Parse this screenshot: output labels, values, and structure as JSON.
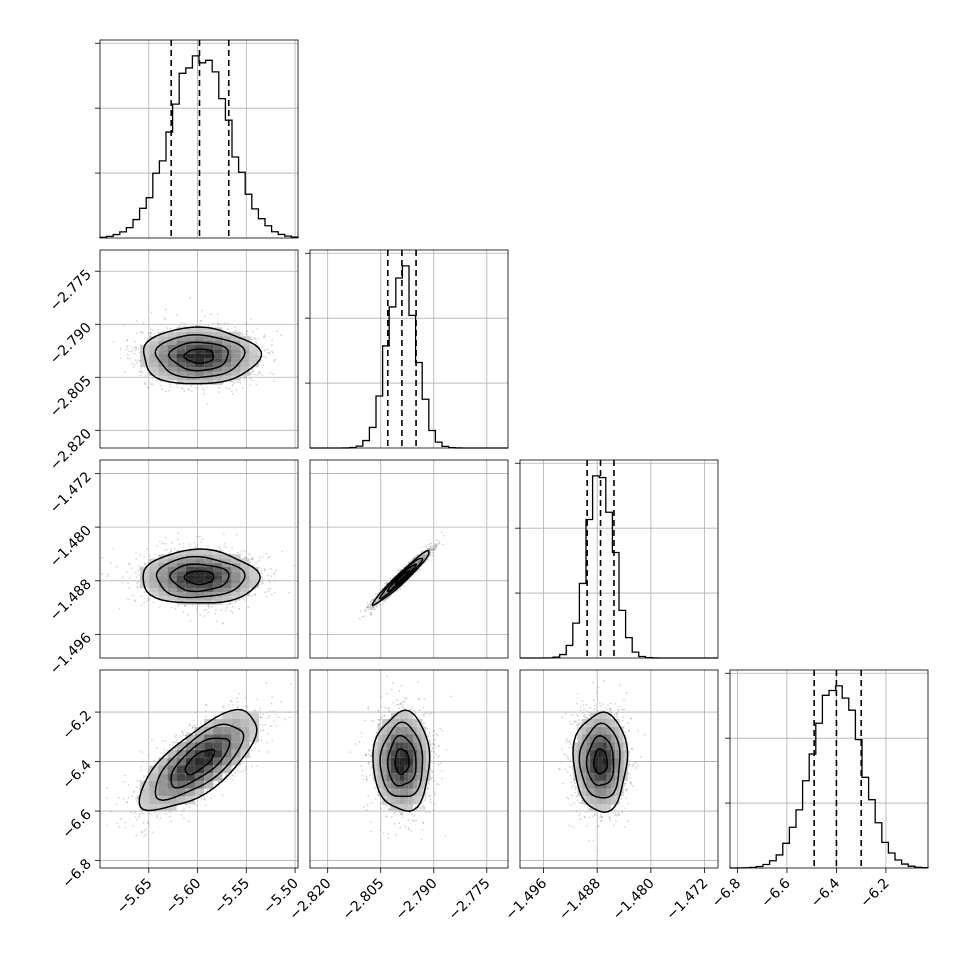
{
  "chart_data": {
    "type": "corner",
    "grid": true,
    "colors": {
      "points": "#888888",
      "lines": "#000000",
      "grid": "#b0b0b0"
    },
    "parameters": [
      {
        "index": 0,
        "median": -5.598,
        "q16": -5.627,
        "q84": -5.568,
        "sigma": 0.03,
        "range": [
          -5.7,
          -5.497
        ],
        "ticks": [
          -5.65,
          -5.6,
          -5.55,
          -5.5
        ],
        "tick_labels": [
          "−5.65",
          "−5.60",
          "−5.55",
          "−5.50"
        ],
        "hist_ticks": [
          0,
          1,
          2
        ]
      },
      {
        "index": 1,
        "median": -2.799,
        "q16": -2.803,
        "q84": -2.795,
        "sigma": 0.004,
        "range": [
          -2.825,
          -2.769
        ],
        "ticks": [
          -2.82,
          -2.805,
          -2.79,
          -2.775
        ],
        "tick_labels": [
          "−2.820",
          "−2.805",
          "−2.790",
          "−2.775"
        ],
        "hist_ticks": [
          10,
          20,
          30,
          40
        ]
      },
      {
        "index": 2,
        "median": -1.4875,
        "q16": -1.4895,
        "q84": -1.4855,
        "sigma": 0.002,
        "range": [
          -1.4995,
          -1.47
        ],
        "ticks": [
          -1.496,
          -1.488,
          -1.48,
          -1.472
        ],
        "tick_labels": [
          "−1.496",
          "−1.488",
          "−1.480",
          "−1.472"
        ],
        "hist_ticks": [
          20,
          40,
          60
        ]
      },
      {
        "index": 3,
        "median": -6.4,
        "q16": -6.49,
        "q84": -6.3,
        "sigma": 0.1,
        "range": [
          -6.83,
          -6.03
        ],
        "ticks": [
          -6.8,
          -6.6,
          -6.4,
          -6.2
        ],
        "tick_labels": [
          "−6.8",
          "−6.6",
          "−6.4",
          "−6.2"
        ],
        "hist_ticks": [
          0.5,
          1.0,
          1.5
        ]
      }
    ],
    "correlations": [
      {
        "i": 1,
        "j": 0,
        "rho": 0.0
      },
      {
        "i": 2,
        "j": 0,
        "rho": 0.0
      },
      {
        "i": 2,
        "j": 1,
        "rho": 0.97
      },
      {
        "i": 3,
        "j": 0,
        "rho": 0.72
      },
      {
        "i": 3,
        "j": 1,
        "rho": 0.0
      },
      {
        "i": 3,
        "j": 2,
        "rho": 0.0
      }
    ],
    "contour_levels_sigma": [
      0.5,
      1.0,
      1.5,
      2.0
    ],
    "n_samples_shown": 1800
  }
}
